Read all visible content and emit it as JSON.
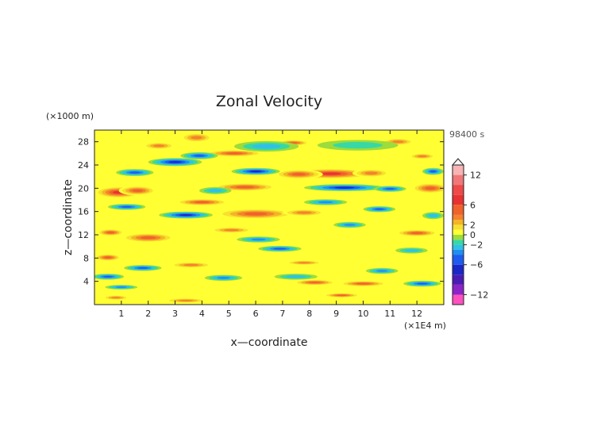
{
  "chart_data": {
    "type": "heatmap",
    "title": "Zonal Velocity",
    "xlabel": "x—coordinate",
    "ylabel": "z—coordinate",
    "x_unit": "(×1E4 m)",
    "y_unit": "(×1000 m)",
    "time_label": "98400 s",
    "xlim": [
      0,
      13
    ],
    "ylim": [
      0,
      30
    ],
    "x_ticks": [
      {
        "value": 1,
        "label": "1"
      },
      {
        "value": 2,
        "label": "2"
      },
      {
        "value": 3,
        "label": "3"
      },
      {
        "value": 4,
        "label": "4"
      },
      {
        "value": 5,
        "label": "5"
      },
      {
        "value": 6,
        "label": "6"
      },
      {
        "value": 7,
        "label": "7"
      },
      {
        "value": 8,
        "label": "8"
      },
      {
        "value": 9,
        "label": "9"
      },
      {
        "value": 10,
        "label": "10"
      },
      {
        "value": 11,
        "label": "11"
      },
      {
        "value": 12,
        "label": "12"
      }
    ],
    "y_ticks": [
      {
        "value": 4,
        "label": "4"
      },
      {
        "value": 8,
        "label": "8"
      },
      {
        "value": 12,
        "label": "12"
      },
      {
        "value": 16,
        "label": "16"
      },
      {
        "value": 20,
        "label": "20"
      },
      {
        "value": 24,
        "label": "24"
      },
      {
        "value": 28,
        "label": "28"
      }
    ],
    "grid": false,
    "colorbar": {
      "position": "right",
      "range": [
        -14,
        14
      ],
      "tick_labels": [
        {
          "value": 12,
          "label": "12"
        },
        {
          "value": 6,
          "label": "6"
        },
        {
          "value": 2,
          "label": "2"
        },
        {
          "value": 0,
          "label": "0"
        },
        {
          "value": -2,
          "label": "−2"
        },
        {
          "value": -6,
          "label": "−6"
        },
        {
          "value": -12,
          "label": "−12"
        }
      ],
      "levels": [
        {
          "from": 12,
          "to": 14,
          "color": "#f8b4b4"
        },
        {
          "from": 10,
          "to": 12,
          "color": "#f07878"
        },
        {
          "from": 8,
          "to": 10,
          "color": "#ee4a4a"
        },
        {
          "from": 6,
          "to": 8,
          "color": "#e83232"
        },
        {
          "from": 4,
          "to": 6,
          "color": "#f0622a"
        },
        {
          "from": 3,
          "to": 4,
          "color": "#f4822e"
        },
        {
          "from": 2,
          "to": 3,
          "color": "#f4b424"
        },
        {
          "from": 1,
          "to": 2,
          "color": "#f8e030"
        },
        {
          "from": 0,
          "to": 1,
          "color": "#ffff33"
        },
        {
          "from": -1,
          "to": 0,
          "color": "#9cdc3c"
        },
        {
          "from": -2,
          "to": -1,
          "color": "#38d8a4"
        },
        {
          "from": -3,
          "to": -2,
          "color": "#30c0e8"
        },
        {
          "from": -4,
          "to": -3,
          "color": "#1e90f0"
        },
        {
          "from": -6,
          "to": -4,
          "color": "#1e5cf0"
        },
        {
          "from": -8,
          "to": -6,
          "color": "#1a28c8"
        },
        {
          "from": -10,
          "to": -8,
          "color": "#4a1cb4"
        },
        {
          "from": -12,
          "to": -10,
          "color": "#8c24c8"
        },
        {
          "from": -14,
          "to": -12,
          "color": "#ff50c0"
        }
      ]
    },
    "features": [
      {
        "x": 8.8,
        "z": 22.5,
        "value": 6,
        "sx": 1.6,
        "sz": 0.9
      },
      {
        "x": 7.6,
        "z": 22.4,
        "value": 5,
        "sx": 0.9,
        "sz": 0.8
      },
      {
        "x": 10.3,
        "z": 22.6,
        "value": 3,
        "sx": 0.7,
        "sz": 0.7
      },
      {
        "x": 0.9,
        "z": 19.3,
        "value": 7,
        "sx": 0.9,
        "sz": 1.0
      },
      {
        "x": 1.6,
        "z": 19.6,
        "value": 5,
        "sx": 0.7,
        "sz": 0.8
      },
      {
        "x": 5.6,
        "z": 20.2,
        "value": 5,
        "sx": 1.2,
        "sz": 0.7
      },
      {
        "x": 12.5,
        "z": 20.0,
        "value": 5,
        "sx": 0.7,
        "sz": 0.9
      },
      {
        "x": 5.2,
        "z": 26.0,
        "value": 4,
        "sx": 1.1,
        "sz": 0.6
      },
      {
        "x": 3.8,
        "z": 28.7,
        "value": 3,
        "sx": 0.6,
        "sz": 0.8
      },
      {
        "x": 2.4,
        "z": 27.3,
        "value": 3,
        "sx": 0.6,
        "sz": 0.6
      },
      {
        "x": 7.4,
        "z": 27.8,
        "value": 4,
        "sx": 0.6,
        "sz": 0.5
      },
      {
        "x": 6.0,
        "z": 15.6,
        "value": 5,
        "sx": 1.5,
        "sz": 0.9
      },
      {
        "x": 7.8,
        "z": 15.8,
        "value": 3,
        "sx": 0.8,
        "sz": 0.6
      },
      {
        "x": 4.0,
        "z": 17.6,
        "value": 4,
        "sx": 1.0,
        "sz": 0.6
      },
      {
        "x": 2.0,
        "z": 11.5,
        "value": 5,
        "sx": 1.0,
        "sz": 0.8
      },
      {
        "x": 0.6,
        "z": 12.4,
        "value": 4,
        "sx": 0.5,
        "sz": 0.6
      },
      {
        "x": 5.1,
        "z": 12.8,
        "value": 3,
        "sx": 0.8,
        "sz": 0.5
      },
      {
        "x": 12.0,
        "z": 12.3,
        "value": 4,
        "sx": 0.8,
        "sz": 0.6
      },
      {
        "x": 0.5,
        "z": 8.1,
        "value": 4,
        "sx": 0.5,
        "sz": 0.6
      },
      {
        "x": 3.6,
        "z": 6.8,
        "value": 3,
        "sx": 0.8,
        "sz": 0.5
      },
      {
        "x": 8.2,
        "z": 3.8,
        "value": 4,
        "sx": 0.8,
        "sz": 0.5
      },
      {
        "x": 10.0,
        "z": 3.6,
        "value": 4,
        "sx": 0.9,
        "sz": 0.5
      },
      {
        "x": 9.2,
        "z": 1.6,
        "value": 4,
        "sx": 0.7,
        "sz": 0.4
      },
      {
        "x": 3.4,
        "z": 0.7,
        "value": 3,
        "sx": 0.8,
        "sz": 0.4
      },
      {
        "x": 0.8,
        "z": 1.2,
        "value": 3,
        "sx": 0.5,
        "sz": 0.4
      },
      {
        "x": 7.8,
        "z": 7.2,
        "value": 3,
        "sx": 0.7,
        "sz": 0.4
      },
      {
        "x": 11.3,
        "z": 28.0,
        "value": 3,
        "sx": 0.6,
        "sz": 0.6
      },
      {
        "x": 12.2,
        "z": 25.5,
        "value": 3,
        "sx": 0.5,
        "sz": 0.5
      },
      {
        "x": 3.0,
        "z": 24.5,
        "value": -6,
        "sx": 1.0,
        "sz": 0.7
      },
      {
        "x": 3.9,
        "z": 25.6,
        "value": -4,
        "sx": 0.7,
        "sz": 0.6
      },
      {
        "x": 1.5,
        "z": 22.7,
        "value": -4,
        "sx": 0.7,
        "sz": 0.6
      },
      {
        "x": 6.0,
        "z": 22.9,
        "value": -6,
        "sx": 0.9,
        "sz": 0.6
      },
      {
        "x": 9.3,
        "z": 20.1,
        "value": -6,
        "sx": 1.5,
        "sz": 0.6
      },
      {
        "x": 11.0,
        "z": 19.9,
        "value": -4,
        "sx": 0.6,
        "sz": 0.5
      },
      {
        "x": 12.6,
        "z": 22.9,
        "value": -4,
        "sx": 0.4,
        "sz": 0.6
      },
      {
        "x": 3.4,
        "z": 15.4,
        "value": -7,
        "sx": 1.0,
        "sz": 0.6
      },
      {
        "x": 1.2,
        "z": 16.8,
        "value": -4,
        "sx": 0.7,
        "sz": 0.5
      },
      {
        "x": 8.6,
        "z": 17.6,
        "value": -3,
        "sx": 0.8,
        "sz": 0.5
      },
      {
        "x": 10.6,
        "z": 16.4,
        "value": -4,
        "sx": 0.6,
        "sz": 0.5
      },
      {
        "x": 6.9,
        "z": 9.6,
        "value": -5,
        "sx": 0.8,
        "sz": 0.5
      },
      {
        "x": 6.1,
        "z": 11.2,
        "value": -3,
        "sx": 0.8,
        "sz": 0.5
      },
      {
        "x": 9.5,
        "z": 13.7,
        "value": -3,
        "sx": 0.6,
        "sz": 0.5
      },
      {
        "x": 1.8,
        "z": 6.3,
        "value": -4,
        "sx": 0.7,
        "sz": 0.5
      },
      {
        "x": 0.5,
        "z": 4.8,
        "value": -4,
        "sx": 0.6,
        "sz": 0.5
      },
      {
        "x": 4.8,
        "z": 4.6,
        "value": -3,
        "sx": 0.7,
        "sz": 0.5
      },
      {
        "x": 12.2,
        "z": 3.6,
        "value": -4,
        "sx": 0.7,
        "sz": 0.5
      },
      {
        "x": 10.7,
        "z": 5.8,
        "value": -3,
        "sx": 0.6,
        "sz": 0.5
      },
      {
        "x": 1.0,
        "z": 3.0,
        "value": -3,
        "sx": 0.6,
        "sz": 0.4
      },
      {
        "x": 6.4,
        "z": 27.2,
        "value": -2,
        "sx": 1.2,
        "sz": 0.9
      },
      {
        "x": 9.8,
        "z": 27.4,
        "value": -1,
        "sx": 1.5,
        "sz": 0.9
      },
      {
        "x": 7.5,
        "z": 4.8,
        "value": -2,
        "sx": 0.8,
        "sz": 0.5
      },
      {
        "x": 12.6,
        "z": 15.3,
        "value": -2,
        "sx": 0.4,
        "sz": 0.6
      },
      {
        "x": 4.5,
        "z": 19.6,
        "value": -2,
        "sx": 0.6,
        "sz": 0.6
      },
      {
        "x": 11.8,
        "z": 9.3,
        "value": -2,
        "sx": 0.6,
        "sz": 0.5
      }
    ]
  }
}
